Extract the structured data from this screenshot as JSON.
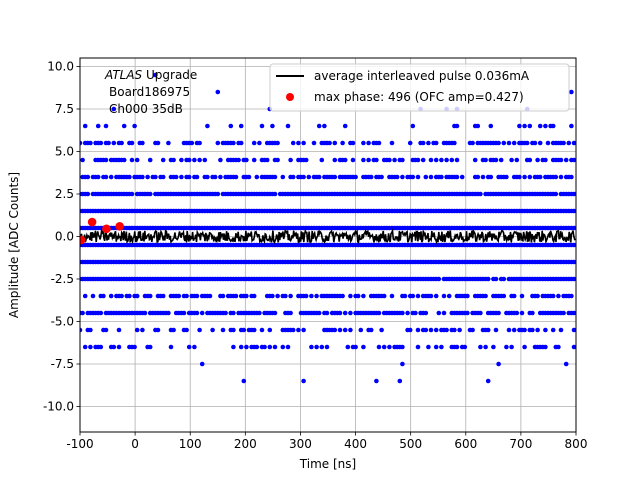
{
  "chart_data": {
    "type": "scatter",
    "xlabel": "Time [ns]",
    "ylabel": "Amplitude [ADC Counts]",
    "xlim": [
      -100,
      800
    ],
    "ylim": [
      -11.5,
      10.5
    ],
    "x_ticks": [
      -100,
      0,
      100,
      200,
      300,
      400,
      500,
      600,
      700,
      800
    ],
    "y_ticks": [
      -10.0,
      -7.5,
      -5.0,
      -2.5,
      0.0,
      2.5,
      5.0,
      7.5,
      10.0
    ],
    "grid": true,
    "legend_position": "top-right",
    "annotation": {
      "line1_italic": "ATLAS",
      "line1_rest": " Upgrade",
      "line2": "Board186975",
      "line3": "Ch000 35dB"
    },
    "series": [
      {
        "name": "",
        "kind": "scatter",
        "color": "#0000ff",
        "levels": [
          -8.5,
          -7.5,
          -6.5,
          -5.5,
          -4.5,
          -3.5,
          -2.5,
          -1.5,
          -0.5,
          0.5,
          1.5,
          2.5,
          3.5,
          4.5,
          5.5,
          6.5,
          7.5,
          8.5,
          9.5
        ],
        "density": [
          0.015,
          0.03,
          0.35,
          0.45,
          0.75,
          0.6,
          0.97,
          1.0,
          1.0,
          1.0,
          1.0,
          0.97,
          0.75,
          0.5,
          0.55,
          0.15,
          0.05,
          0.01,
          0.01
        ]
      },
      {
        "name": "average interleaved pulse 0.036mA",
        "kind": "line",
        "color": "#000000",
        "mean": 0.0,
        "spread": 0.35
      },
      {
        "name": "max phase: 496 (OFC amp=0.427)",
        "kind": "points",
        "color": "#ff0000",
        "x": [
          -98,
          -78,
          -52,
          -28
        ],
        "y": [
          -0.2,
          0.85,
          0.45,
          0.6
        ]
      }
    ]
  }
}
